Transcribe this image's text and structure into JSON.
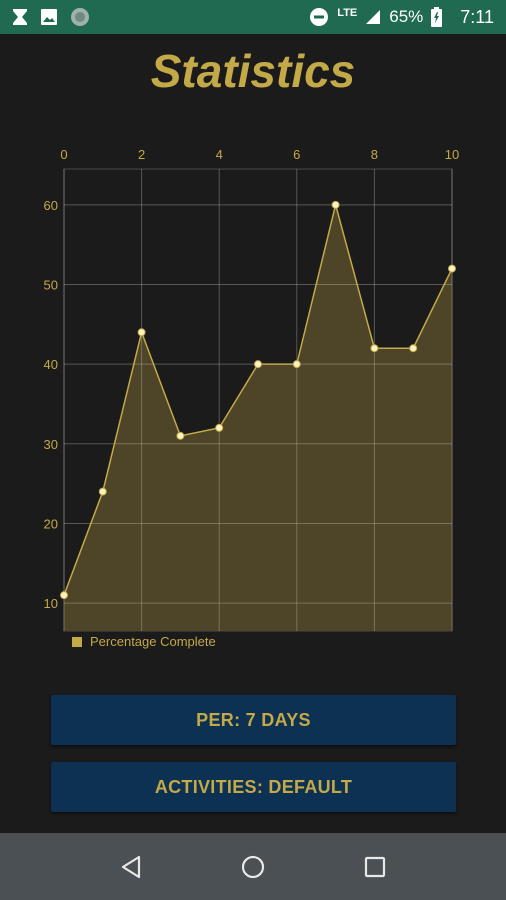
{
  "status_bar": {
    "network": "LTE",
    "battery": "65%",
    "time": "7:11",
    "icons": [
      "hourglass-icon",
      "image-icon",
      "circle-app-icon",
      "do-not-disturb-icon",
      "signal-icon",
      "battery-icon"
    ]
  },
  "page": {
    "title": "Statistics"
  },
  "chart_data": {
    "type": "area",
    "x": [
      0,
      1,
      2,
      3,
      4,
      5,
      6,
      7,
      8,
      9,
      10
    ],
    "series": [
      {
        "name": "Percentage Complete",
        "values": [
          11,
          24,
          44,
          31,
          32,
          40,
          40,
          60,
          42,
          42,
          52
        ]
      }
    ],
    "x_ticks": [
      0,
      2,
      4,
      6,
      8,
      10
    ],
    "y_ticks": [
      10,
      20,
      30,
      40,
      50,
      60
    ],
    "xlim": [
      0,
      10
    ],
    "ylim": [
      6.5,
      64.5
    ],
    "x_axis_position": "top",
    "grid": true,
    "legend_position": "bottom-left",
    "line_color": "#c4a948",
    "fill_color": "#4e4528"
  },
  "legend": {
    "label": "Percentage Complete"
  },
  "buttons": {
    "per_label": "PER: 7 DAYS",
    "activities_label": "ACTIVITIES: DEFAULT"
  },
  "colors": {
    "accent": "#c4a948",
    "background": "#1b1b1b",
    "status_bar": "#1f6a51",
    "button": "#0d3153",
    "nav_bar": "#4a5053"
  },
  "nav_bar": {
    "icons": [
      "back-icon",
      "home-icon",
      "recents-icon"
    ]
  }
}
